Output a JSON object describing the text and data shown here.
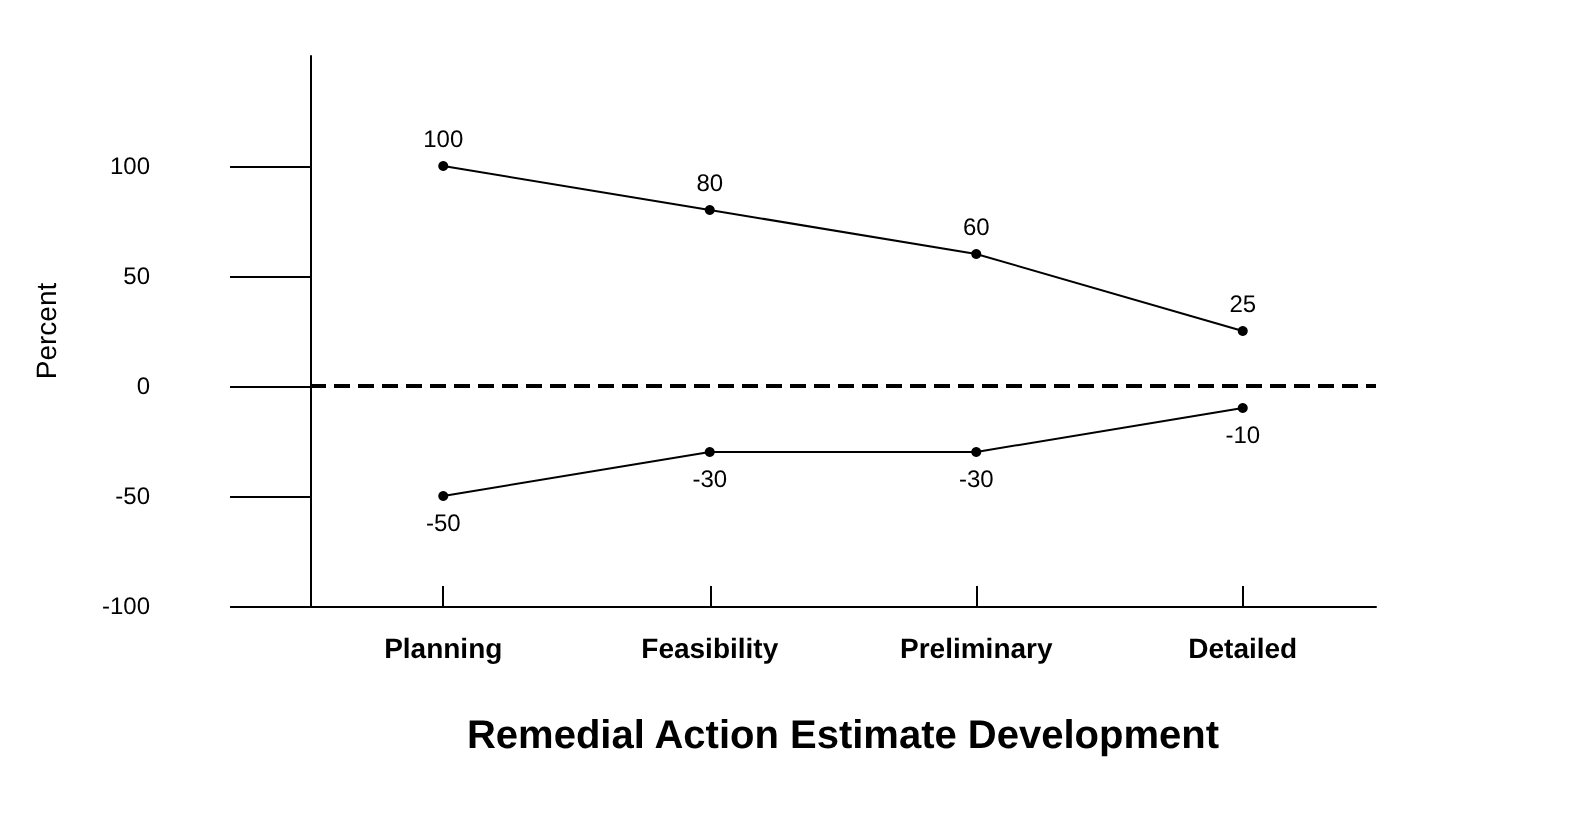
{
  "chart_data": {
    "type": "line",
    "xlabel": "Remedial Action Estimate Development",
    "ylabel": "Percent",
    "categories": [
      "Planning",
      "Feasibility",
      "Preliminary",
      "Detailed"
    ],
    "series": [
      {
        "color": "#000000",
        "values": [
          100,
          80,
          60,
          25
        ]
      },
      {
        "color": "#000000",
        "values": [
          -50,
          -30,
          -30,
          -10
        ]
      }
    ],
    "ylim": [
      -100,
      150
    ],
    "yticks": [
      -100,
      -50,
      0,
      50,
      100
    ],
    "ref_lines": [
      {
        "axis": "y",
        "value": 0,
        "label": null,
        "color": "#000000",
        "line_style": "dashed"
      }
    ],
    "data_labels": true,
    "grid": false,
    "marker": "circle",
    "line_style": "solid"
  }
}
